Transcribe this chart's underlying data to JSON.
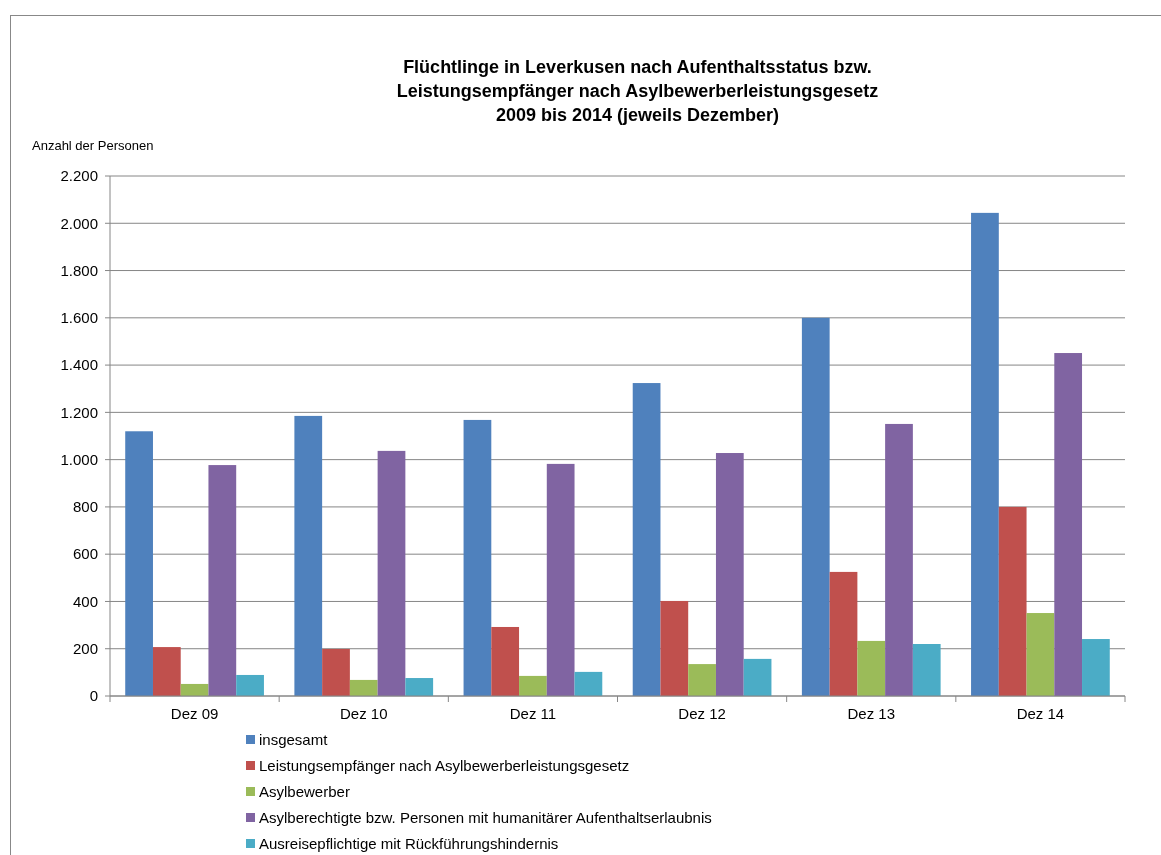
{
  "chart_data": {
    "type": "bar",
    "title": "Flüchtlinge in Leverkusen nach Aufenthaltsstatus bzw. Leistungsempfänger nach Asylbewerberleistungsgesetz 2009 bis 2014 (jeweils Dezember)",
    "ylabel": "Anzahl der Personen",
    "categories": [
      "Dez 09",
      "Dez 10",
      "Dez 11",
      "Dez 12",
      "Dez 13",
      "Dez 14"
    ],
    "series": [
      {
        "name": "insgesamt",
        "color": "#4f81bd",
        "values": [
          1120,
          1185,
          1168,
          1324,
          1600,
          2044
        ]
      },
      {
        "name": "Leistungsempfänger nach Asylbewerberleistungsgesetz",
        "color": "#c0504d",
        "values": [
          207,
          199,
          292,
          402,
          525,
          800
        ]
      },
      {
        "name": "Asylbewerber",
        "color": "#9bbb59",
        "values": [
          51,
          68,
          85,
          135,
          233,
          351
        ]
      },
      {
        "name": "Asylberechtigte bzw. Personen mit humanitärer Aufenthaltserlaubnis",
        "color": "#8064a2",
        "values": [
          977,
          1037,
          982,
          1028,
          1151,
          1451
        ]
      },
      {
        "name": "Ausreisepflichtige mit Rückführungshindernis",
        "color": "#4bacc6",
        "values": [
          89,
          76,
          102,
          157,
          220,
          241
        ]
      }
    ],
    "ylim": [
      0,
      2200
    ],
    "yticks": [
      {
        "value": 0,
        "label": "0"
      },
      {
        "value": 200,
        "label": "200"
      },
      {
        "value": 400,
        "label": "400"
      },
      {
        "value": 600,
        "label": "600"
      },
      {
        "value": 800,
        "label": "800"
      },
      {
        "value": 1000,
        "label": "1.000"
      },
      {
        "value": 1200,
        "label": "1.200"
      },
      {
        "value": 1400,
        "label": "1.400"
      },
      {
        "value": 1600,
        "label": "1.600"
      },
      {
        "value": 1800,
        "label": "1.800"
      },
      {
        "value": 2000,
        "label": "2.000"
      },
      {
        "value": 2200,
        "label": "2.200"
      }
    ],
    "grid": "y",
    "legend": "bottom"
  }
}
